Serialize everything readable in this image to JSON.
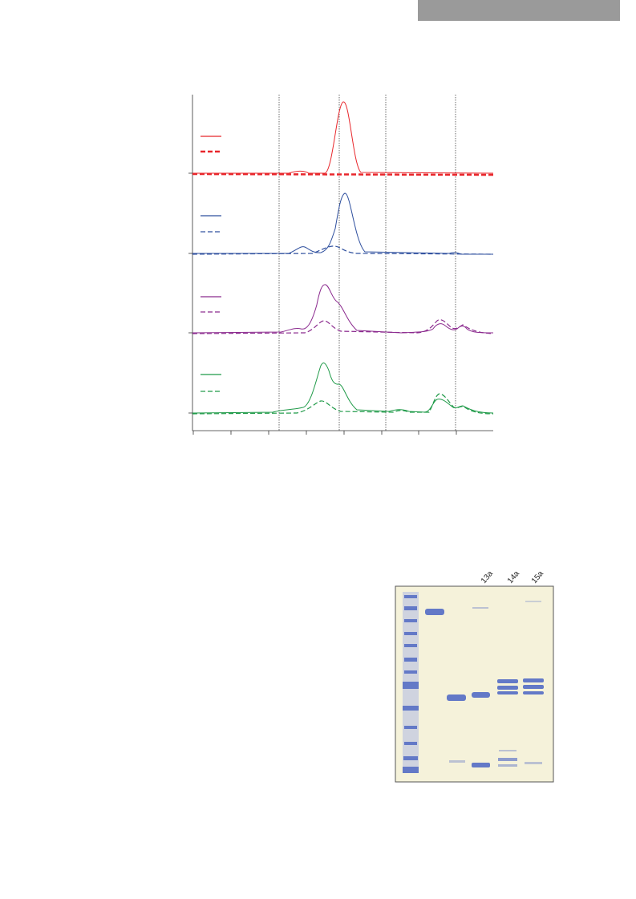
{
  "gel": {
    "lane_labels": [
      "13a",
      "14a",
      "15a"
    ]
  }
}
